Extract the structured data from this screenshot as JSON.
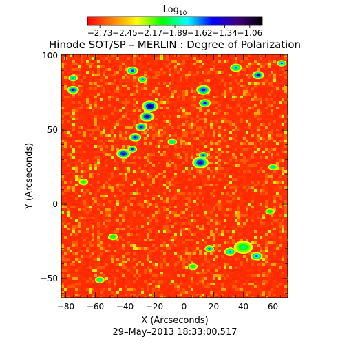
{
  "chart_data": {
    "type": "heatmap",
    "title": "Hinode SOT/SP – MERLIN : Degree of Polarization",
    "colorbar": {
      "label_main": "Log",
      "label_sub": "10",
      "tick_labels": [
        "−2.73",
        "−2.45",
        "−2.17",
        "−1.89",
        "−1.62",
        "−1.34",
        "−1.06"
      ],
      "range": [
        -2.87,
        -0.92
      ],
      "colormap": [
        "#ff0000",
        "#ff8000",
        "#ffff00",
        "#00ff00",
        "#00ffff",
        "#0000ff",
        "#400080",
        "#000000"
      ]
    },
    "xlabel": "X (Arcseconds)",
    "ylabel": "Y (Arcseconds)",
    "xlim": [
      -83,
      70
    ],
    "ylim": [
      -63,
      101
    ],
    "xticks": [
      -80,
      -60,
      -40,
      -20,
      0,
      20,
      40,
      60
    ],
    "xtick_labels": [
      "−80",
      "−60",
      "−40",
      "−20",
      "0",
      "20",
      "40",
      "60"
    ],
    "yticks": [
      -50,
      0,
      50,
      100
    ],
    "ytick_labels": [
      "−50",
      "0",
      "50",
      "100"
    ],
    "background_log_polarization": -2.6,
    "features": [
      {
        "x": -23,
        "y": 66,
        "r": 3.5,
        "level": -1.1
      },
      {
        "x": -25,
        "y": 59,
        "r": 3,
        "level": -1.2
      },
      {
        "x": -29,
        "y": 52,
        "r": 2.5,
        "level": -1.3
      },
      {
        "x": -33,
        "y": 45,
        "r": 2.5,
        "level": -1.3
      },
      {
        "x": -41,
        "y": 34,
        "r": 3,
        "level": -1.2
      },
      {
        "x": -35,
        "y": 37,
        "r": 2,
        "level": -1.4
      },
      {
        "x": 13,
        "y": 77,
        "r": 3,
        "level": -1.3
      },
      {
        "x": 14,
        "y": 68,
        "r": 2.5,
        "level": -1.4
      },
      {
        "x": 11,
        "y": 28,
        "r": 3.5,
        "level": -1.2
      },
      {
        "x": 13,
        "y": 33,
        "r": 2,
        "level": -1.4
      },
      {
        "x": -75,
        "y": 77,
        "r": 2.5,
        "level": -1.3
      },
      {
        "x": -75,
        "y": 85,
        "r": 2,
        "level": -1.6
      },
      {
        "x": -35,
        "y": 90,
        "r": 2.5,
        "level": -1.5
      },
      {
        "x": -28,
        "y": 84,
        "r": 2,
        "level": -1.6
      },
      {
        "x": 35,
        "y": 92,
        "r": 2.5,
        "level": -1.6
      },
      {
        "x": 50,
        "y": 87,
        "r": 2.5,
        "level": -1.3
      },
      {
        "x": 66,
        "y": 95,
        "r": 2,
        "level": -1.5
      },
      {
        "x": 40,
        "y": -29,
        "r": 4,
        "level": -1.9
      },
      {
        "x": 31,
        "y": -32,
        "r": 2.5,
        "level": -1.6
      },
      {
        "x": 49,
        "y": -35,
        "r": 2.5,
        "level": -1.5
      },
      {
        "x": 17,
        "y": -30,
        "r": 2,
        "level": -1.6
      },
      {
        "x": -57,
        "y": -51,
        "r": 2,
        "level": -1.8
      },
      {
        "x": -8,
        "y": 42,
        "r": 2,
        "level": -1.7
      },
      {
        "x": 60,
        "y": 25,
        "r": 2,
        "level": -1.7
      },
      {
        "x": -48,
        "y": -22,
        "r": 2,
        "level": -1.9
      },
      {
        "x": 6,
        "y": -42,
        "r": 2,
        "level": -1.9
      },
      {
        "x": -68,
        "y": 15,
        "r": 2,
        "level": -2.0
      },
      {
        "x": 58,
        "y": -5,
        "r": 2,
        "level": -1.9
      }
    ]
  },
  "footer": {
    "timestamp": "29–May–2013 18:33:00.517"
  },
  "colors": {
    "background": "#ffffff",
    "axes": "#000000"
  }
}
